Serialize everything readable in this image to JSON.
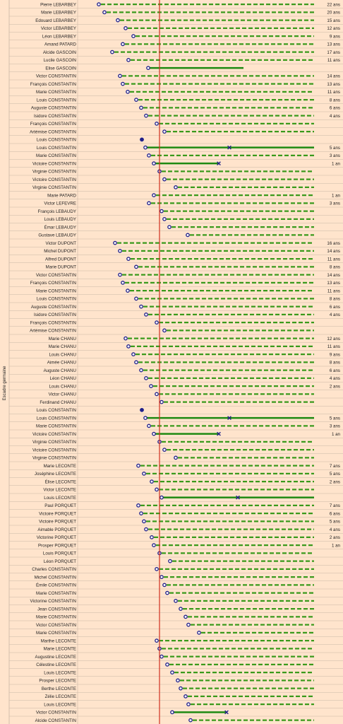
{
  "chart_data": {
    "type": "timeline",
    "side_label": "Escadre germaine",
    "colors": {
      "background": "#ffe4cc",
      "row_line": "#c9b8a6",
      "dash": "#3a9a1c",
      "solid": "#1e8a12",
      "marker_fill": "#ffffff",
      "marker_stroke": "#20208a",
      "ref_line": "#d03020",
      "end_marker": "#20208a"
    },
    "rows": [
      {
        "name": "Pierre LEBARBEY",
        "start": 140,
        "kind": "dash",
        "age": "22 ans"
      },
      {
        "name": "Marie LEBARBEY",
        "start": 148,
        "kind": "dash",
        "age": "20 ans"
      },
      {
        "name": "Edouard LEBARBEY",
        "start": 167,
        "kind": "dash",
        "age": "15 ans"
      },
      {
        "name": "Victor LEBARBEY",
        "start": 178,
        "kind": "dash",
        "age": "12 ans"
      },
      {
        "name": "Léon LEBARBEY",
        "start": 189,
        "kind": "dash",
        "age": "9 ans"
      },
      {
        "name": "Amand PATARD",
        "start": 174,
        "kind": "dash",
        "age": "13 ans"
      },
      {
        "name": "Alcide GASCOIN",
        "start": 159,
        "kind": "dash",
        "age": "17 ans"
      },
      {
        "name": "Lucile GASCOIN",
        "start": 182,
        "kind": "dash",
        "age": "11 ans"
      },
      {
        "name": "Elise GASCOIN",
        "start": 210,
        "kind": "solid",
        "end": 345,
        "marker": "none",
        "age": ""
      },
      {
        "name": "Victor CONSTANTIN",
        "start": 170,
        "kind": "dash",
        "age": "14 ans"
      },
      {
        "name": "François CONSTANTIN",
        "start": 174,
        "kind": "dash",
        "age": "13 ans"
      },
      {
        "name": "Marie CONSTANTIN",
        "start": 181,
        "kind": "dash",
        "age": "11 ans"
      },
      {
        "name": "Louis CONSTANTIN",
        "start": 193,
        "kind": "dash",
        "age": "8 ans"
      },
      {
        "name": "Auguste CONSTANTIN",
        "start": 200,
        "kind": "dash",
        "age": "6 ans"
      },
      {
        "name": "Isidore CONSTANTIN",
        "start": 207,
        "kind": "dash",
        "age": "4 ans"
      },
      {
        "name": "François CONSTANTIN",
        "start": 222,
        "kind": "dash",
        "age": ""
      },
      {
        "name": "Artémise CONSTANTIN",
        "start": 233,
        "kind": "dash",
        "age": ""
      },
      {
        "name": "Louis CONSTANTIN",
        "start": 201,
        "kind": "dot",
        "age": ""
      },
      {
        "name": "Louis CONSTANTIN",
        "start": 206,
        "kind": "solid",
        "end": 445,
        "x": 325,
        "age": "5 ans"
      },
      {
        "name": "Marie CONSTANTIN",
        "start": 211,
        "kind": "dash",
        "age": "3 ans"
      },
      {
        "name": "Victoire CONSTANTIN",
        "start": 218,
        "kind": "solid",
        "end": 310,
        "x": 310,
        "age": "1 an"
      },
      {
        "name": "Virginie CONSTANTIN",
        "start": 226,
        "kind": "dash",
        "age": ""
      },
      {
        "name": "Victoire CONSTANTIN",
        "start": 233,
        "kind": "dash",
        "age": ""
      },
      {
        "name": "Virginie CONSTANTIN",
        "start": 249,
        "kind": "dash",
        "age": ""
      },
      {
        "name": "Marie PATARD",
        "start": 218,
        "kind": "dash",
        "age": "1 an"
      },
      {
        "name": "Victor LEFEVRE",
        "start": 211,
        "kind": "dash",
        "age": "3 ans"
      },
      {
        "name": "François LEBAUDY",
        "start": 229,
        "kind": "dash",
        "age": ""
      },
      {
        "name": "Louis LEBAUDY",
        "start": 233,
        "kind": "dash",
        "age": ""
      },
      {
        "name": "Émar LEBAUDY",
        "start": 240,
        "kind": "dash",
        "age": ""
      },
      {
        "name": "Gustave LEBAUDY",
        "start": 266,
        "kind": "dash",
        "age": ""
      },
      {
        "name": "Victor DUPONT",
        "start": 163,
        "kind": "dash",
        "age": "16 ans"
      },
      {
        "name": "Michel DUPONT",
        "start": 170,
        "kind": "dash",
        "age": "14 ans"
      },
      {
        "name": "Alfred DUPONT",
        "start": 182,
        "kind": "dash",
        "age": "11 ans"
      },
      {
        "name": "Marie DUPONT",
        "start": 193,
        "kind": "dash",
        "age": "8 ans"
      },
      {
        "name": "Victor CONSTANTIN",
        "start": 170,
        "kind": "dash",
        "age": "14 ans"
      },
      {
        "name": "François CONSTANTIN",
        "start": 174,
        "kind": "dash",
        "age": "13 ans"
      },
      {
        "name": "Marie CONSTANTIN",
        "start": 181,
        "kind": "dash",
        "age": "11 ans"
      },
      {
        "name": "Louis CONSTANTIN",
        "start": 193,
        "kind": "dash",
        "age": "8 ans"
      },
      {
        "name": "Auguste CONSTANTIN",
        "start": 200,
        "kind": "dash",
        "age": "6 ans"
      },
      {
        "name": "Isidore CONSTANTIN",
        "start": 207,
        "kind": "dash",
        "age": "4 ans"
      },
      {
        "name": "François CONSTANTIN",
        "start": 222,
        "kind": "dash",
        "age": ""
      },
      {
        "name": "Artémise CONSTANTIN",
        "start": 233,
        "kind": "dash",
        "age": ""
      },
      {
        "name": "Marie CHANU",
        "start": 178,
        "kind": "dash",
        "age": "12 ans"
      },
      {
        "name": "Marie CHANU",
        "start": 182,
        "kind": "dash",
        "age": "11 ans"
      },
      {
        "name": "Louis CHANU",
        "start": 189,
        "kind": "dash",
        "age": "9 ans"
      },
      {
        "name": "Aimée CHANU",
        "start": 193,
        "kind": "dash",
        "age": "8 ans"
      },
      {
        "name": "Auguste CHANU",
        "start": 200,
        "kind": "dash",
        "age": "6 ans"
      },
      {
        "name": "Léon CHANU",
        "start": 207,
        "kind": "dash",
        "age": "4 ans"
      },
      {
        "name": "Louis CHANU",
        "start": 214,
        "kind": "dash",
        "age": "2 ans"
      },
      {
        "name": "Victor CHANU",
        "start": 222,
        "kind": "dash",
        "age": ""
      },
      {
        "name": "Ferdinand CHANU",
        "start": 229,
        "kind": "dash",
        "age": ""
      },
      {
        "name": "Louis CONSTANTIN",
        "start": 201,
        "kind": "dot",
        "age": ""
      },
      {
        "name": "Louis CONSTANTIN",
        "start": 206,
        "kind": "solid",
        "end": 445,
        "x": 325,
        "age": "5 ans"
      },
      {
        "name": "Marie CONSTANTIN",
        "start": 211,
        "kind": "dash",
        "age": "3 ans"
      },
      {
        "name": "Victoire CONSTANTIN",
        "start": 218,
        "kind": "solid",
        "end": 310,
        "x": 310,
        "age": "1 an"
      },
      {
        "name": "Virginie CONSTANTIN",
        "start": 226,
        "kind": "dash",
        "age": ""
      },
      {
        "name": "Victoire CONSTANTIN",
        "start": 233,
        "kind": "dash",
        "age": ""
      },
      {
        "name": "Virginie CONSTANTIN",
        "start": 249,
        "kind": "dash",
        "age": ""
      },
      {
        "name": "Marie LECONTE",
        "start": 196,
        "kind": "dash",
        "age": "7 ans"
      },
      {
        "name": "Joséphine LECONTE",
        "start": 204,
        "kind": "dash",
        "age": "5 ans"
      },
      {
        "name": "Élise LECONTE",
        "start": 215,
        "kind": "dash",
        "age": "2 ans"
      },
      {
        "name": "Victor LECONTE",
        "start": 222,
        "kind": "dash",
        "age": ""
      },
      {
        "name": "Louis LECONTE",
        "start": 229,
        "kind": "solid",
        "end": 445,
        "x": 337,
        "age": ""
      },
      {
        "name": "Paul PORQUET",
        "start": 196,
        "kind": "dash",
        "age": "7 ans"
      },
      {
        "name": "Victoire PORQUET",
        "start": 200,
        "kind": "dash",
        "age": "6 ans"
      },
      {
        "name": "Victoire PORQUET",
        "start": 204,
        "kind": "dash",
        "age": "5 ans"
      },
      {
        "name": "Aimable PORQUET",
        "start": 207,
        "kind": "dash",
        "age": "4 ans"
      },
      {
        "name": "Victorine PORQUET",
        "start": 215,
        "kind": "dash",
        "age": "2 ans"
      },
      {
        "name": "Prosper PORQUET",
        "start": 218,
        "kind": "dash",
        "age": "1 an"
      },
      {
        "name": "Louis PORQUET",
        "start": 226,
        "kind": "dash",
        "age": ""
      },
      {
        "name": "Léon PORQUET",
        "start": 241,
        "kind": "dash",
        "age": ""
      },
      {
        "name": "Charles CONSTANTIN",
        "start": 222,
        "kind": "dash",
        "age": ""
      },
      {
        "name": "Michel CONSTANTIN",
        "start": 229,
        "kind": "dash",
        "age": ""
      },
      {
        "name": "Émile CONSTANTIN",
        "start": 233,
        "kind": "dash",
        "age": ""
      },
      {
        "name": "Marie CONSTANTIN",
        "start": 237,
        "kind": "dash",
        "age": ""
      },
      {
        "name": "Victorine CONSTANTIN",
        "start": 249,
        "kind": "dash",
        "age": ""
      },
      {
        "name": "Jean CONSTANTIN",
        "start": 256,
        "kind": "dash",
        "age": ""
      },
      {
        "name": "Marie CONSTANTIN",
        "start": 263,
        "kind": "dash",
        "age": ""
      },
      {
        "name": "Victor CONSTANTIN",
        "start": 267,
        "kind": "dash",
        "age": ""
      },
      {
        "name": "Marie CONSTANTIN",
        "start": 282,
        "kind": "dash",
        "age": ""
      },
      {
        "name": "Marthe LECONTE",
        "start": 222,
        "kind": "dash",
        "age": ""
      },
      {
        "name": "Marie LECONTE",
        "start": 226,
        "kind": "dash",
        "age": ""
      },
      {
        "name": "Augustine LECONTE",
        "start": 229,
        "kind": "dash",
        "age": ""
      },
      {
        "name": "Célestine LECONTE",
        "start": 237,
        "kind": "dash",
        "age": ""
      },
      {
        "name": "Louis LECONTE",
        "start": 244,
        "kind": "dash",
        "age": ""
      },
      {
        "name": "Prosper LECONTE",
        "start": 252,
        "kind": "dash",
        "age": ""
      },
      {
        "name": "Berthe LECONTE",
        "start": 256,
        "kind": "dash",
        "age": ""
      },
      {
        "name": "Zélie LECONTE",
        "start": 263,
        "kind": "dash",
        "age": ""
      },
      {
        "name": "Louis LECONTE",
        "start": 267,
        "kind": "dash",
        "age": ""
      },
      {
        "name": "Victor CONSTANTIN",
        "start": 244,
        "kind": "solid",
        "end": 321,
        "x": 321,
        "age": ""
      },
      {
        "name": "Alcide CONSTANTIN",
        "start": 270,
        "kind": "dash",
        "age": ""
      }
    ]
  }
}
